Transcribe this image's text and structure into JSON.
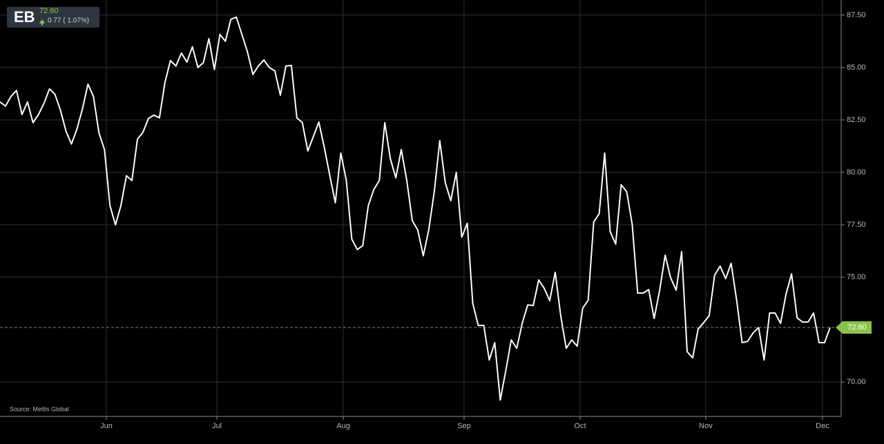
{
  "chart_data": {
    "type": "line",
    "symbol": "EB",
    "price_label": "72.60",
    "change_label": "0.77 ( 1.07%)",
    "source": "Source: Mettis Global",
    "color": "#ffffff",
    "grid": true,
    "x": [
      0,
      1,
      2,
      3,
      4,
      5,
      6,
      7,
      8,
      9,
      10,
      11,
      12,
      13,
      14,
      15,
      16,
      17,
      18,
      19,
      20,
      21,
      22,
      23,
      24,
      25,
      26,
      27,
      28,
      29,
      30,
      31,
      32,
      33,
      34,
      35,
      36,
      37,
      38,
      39,
      40,
      41,
      42,
      43,
      44,
      45,
      46,
      47,
      48,
      49,
      50,
      51,
      52,
      53,
      54,
      55,
      56,
      57,
      58,
      59,
      60,
      61,
      62,
      63,
      64,
      65,
      66,
      67,
      68,
      69,
      70,
      71,
      72,
      73,
      74,
      75,
      76,
      77,
      78,
      79,
      80,
      81,
      82,
      83,
      84,
      85,
      86,
      87,
      88,
      89,
      90,
      91,
      92,
      93,
      94,
      95,
      96,
      97,
      98,
      99,
      100,
      101,
      102,
      103,
      104,
      105,
      106,
      107,
      108,
      109,
      110,
      111,
      112,
      113,
      114,
      115,
      116,
      117,
      118,
      119,
      120,
      121,
      122,
      123,
      124,
      125,
      126,
      127,
      128,
      129,
      130,
      131,
      132,
      133,
      134,
      135,
      136,
      137,
      138,
      139,
      140,
      141,
      142,
      143,
      144,
      145,
      146,
      147,
      148,
      149,
      150,
      151
    ],
    "values": [
      83.36,
      83.16,
      83.62,
      83.91,
      82.76,
      83.36,
      82.37,
      82.76,
      83.29,
      83.98,
      83.72,
      82.96,
      81.97,
      81.35,
      82.07,
      83.03,
      84.21,
      83.62,
      81.88,
      81.09,
      78.42,
      77.5,
      78.42,
      79.84,
      79.61,
      81.58,
      81.91,
      82.57,
      82.73,
      82.6,
      84.28,
      85.33,
      85.07,
      85.69,
      85.26,
      85.99,
      85.0,
      85.23,
      86.38,
      84.9,
      86.58,
      86.25,
      87.3,
      87.4,
      86.58,
      85.76,
      84.67,
      85.07,
      85.36,
      85.0,
      84.84,
      83.68,
      85.07,
      85.1,
      82.6,
      82.37,
      81.02,
      81.71,
      82.4,
      81.18,
      79.84,
      78.55,
      80.92,
      79.61,
      76.81,
      76.32,
      76.51,
      78.42,
      79.18,
      79.61,
      82.37,
      80.66,
      79.74,
      81.09,
      79.61,
      77.7,
      77.24,
      76.02,
      77.27,
      79.08,
      81.51,
      79.51,
      78.65,
      80.0,
      76.91,
      77.57,
      73.75,
      72.7,
      72.7,
      71.05,
      71.88,
      69.14,
      70.53,
      72.01,
      71.61,
      72.8,
      73.68,
      73.65,
      74.87,
      74.47,
      73.88,
      75.23,
      73.16,
      71.61,
      72.01,
      71.71,
      73.52,
      73.91,
      77.63,
      78.03,
      80.92,
      77.17,
      76.58,
      79.41,
      79.08,
      77.53,
      74.24,
      74.24,
      74.41,
      73.03,
      74.38,
      76.05,
      74.97,
      74.38,
      76.22,
      71.45,
      71.15,
      72.53,
      72.83,
      73.16,
      75.1,
      75.53,
      74.93,
      75.66,
      73.91,
      71.88,
      71.94,
      72.34,
      72.6,
      71.05,
      73.29,
      73.29,
      72.8,
      74.21,
      75.16,
      73.06,
      72.86,
      72.86,
      73.29,
      71.88,
      71.88,
      72.6
    ],
    "xlim": [
      0,
      153.02
    ],
    "xticks": [
      {
        "value": 19.35,
        "label": "Jun"
      },
      {
        "value": 39.45,
        "label": "Jul"
      },
      {
        "value": 62.44,
        "label": "Aug"
      },
      {
        "value": 84.42,
        "label": "Sep"
      },
      {
        "value": 105.53,
        "label": "Oct"
      },
      {
        "value": 128.39,
        "label": "Nov"
      },
      {
        "value": 149.62,
        "label": "Dec"
      }
    ],
    "ylim": [
      68.36,
      88.22
    ],
    "yticks": [
      {
        "value": 70,
        "label": "70.00"
      },
      {
        "value": 75,
        "label": "75.00"
      },
      {
        "value": 77.5,
        "label": "77.50"
      },
      {
        "value": 80,
        "label": "80.00"
      },
      {
        "value": 82.5,
        "label": "82.50"
      },
      {
        "value": 85,
        "label": "85.00"
      },
      {
        "value": 87.5,
        "label": "87.50"
      }
    ]
  }
}
